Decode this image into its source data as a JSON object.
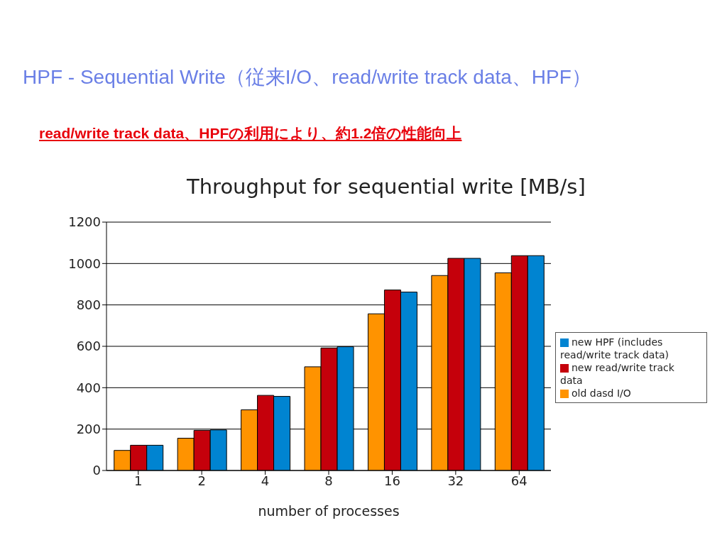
{
  "chart_data": {
    "type": "bar",
    "title": "HPF - Sequential Write（従来I/O、read/write track data、HPF）",
    "subtitle": "read/write track data、HPFの利用により、約1.2倍の性能向上",
    "annotations": [
      "Throughput for sequential write [MB/s]"
    ],
    "xlabel": "number of processes",
    "categories": [
      "1",
      "2",
      "4",
      "8",
      "16",
      "32",
      "64"
    ],
    "series": [
      {
        "name": "old dasd I/O",
        "color": "#ff9300",
        "values": [
          97,
          156,
          293,
          501,
          757,
          942,
          955
        ]
      },
      {
        "name": "new read/write track data",
        "color": "#c5000b",
        "values": [
          122,
          194,
          363,
          592,
          872,
          1025,
          1038
        ]
      },
      {
        "name": "new HPF (includes read/write track data)",
        "color": "#0084d1",
        "values": [
          122,
          196,
          358,
          598,
          862,
          1025,
          1038
        ]
      }
    ],
    "ylim": [
      0,
      1200
    ],
    "yticks": [
      0,
      200,
      400,
      600,
      800,
      1000,
      1200
    ],
    "grid": "y",
    "legend": "right"
  }
}
